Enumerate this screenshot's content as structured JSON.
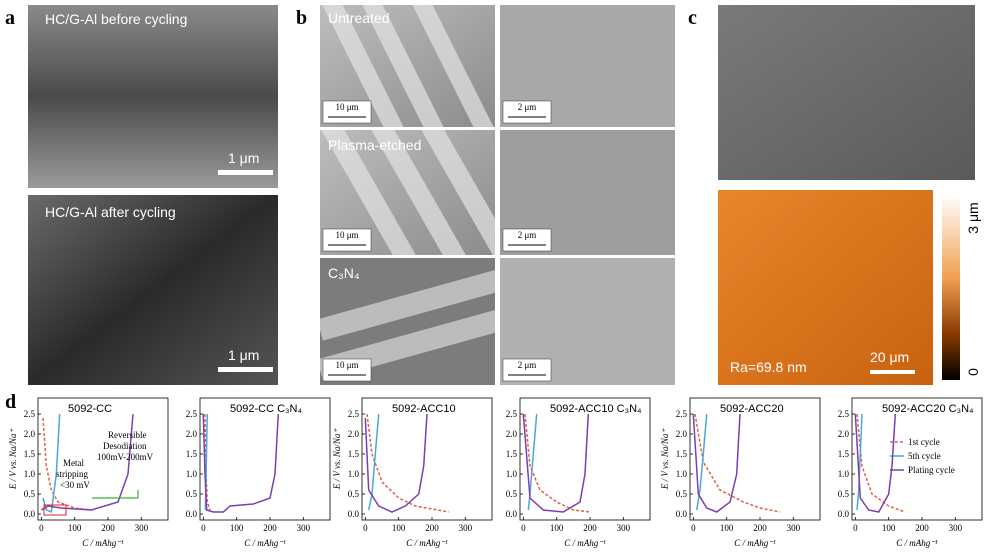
{
  "panels": {
    "a": {
      "label": "a",
      "images": [
        {
          "caption": "HC/G-Al before cycling",
          "scale": "1 μm"
        },
        {
          "caption": "HC/G-Al after cycling",
          "scale": "1 μm"
        }
      ]
    },
    "b": {
      "label": "b",
      "rows": [
        {
          "caption": "Untreated",
          "scales": [
            "10 μm",
            "2 μm"
          ]
        },
        {
          "caption": "Plasma-etched",
          "scales": [
            "10 μm",
            "2 μm"
          ]
        },
        {
          "caption": "C₃N₄",
          "scales": [
            "10 μm",
            "2 μm"
          ]
        }
      ]
    },
    "c": {
      "label": "c",
      "colorbar_max": "3 μm",
      "colorbar_min": "0",
      "roughness": "Ra=69.8 nm",
      "scale": "20 μm"
    },
    "d": {
      "label": "d"
    }
  },
  "chart_data": [
    {
      "type": "line",
      "title": "5092-CC",
      "ylabel": "E / V vs. Na/Na⁺",
      "xlabel": "C / mAhg⁻¹",
      "xlim": [
        -10,
        380
      ],
      "xticks": [
        0,
        100,
        200,
        300
      ],
      "ylim": [
        -0.15,
        2.9
      ],
      "yticks": [
        {
          "value": 0,
          "label": "0.0"
        },
        0.5,
        {
          "value": 1,
          "label": "1.0"
        },
        1.5,
        {
          "value": 2,
          "label": "2.0"
        },
        2.5
      ],
      "annotations": [
        "Metal",
        "stripping",
        "<30 mV",
        "Reversible",
        "Desodiation",
        "100mV-200mV"
      ],
      "series": [
        {
          "color": "#e0604a",
          "dashed": true,
          "x": [
            5,
            15,
            30,
            50,
            100,
            150
          ],
          "values": [
            2.4,
            1.2,
            0.6,
            0.3,
            0.15,
            0.1
          ]
        },
        {
          "color": "#4aa8d8",
          "x": [
            5,
            15,
            30,
            45,
            55
          ],
          "values": [
            0.4,
            0.1,
            0.05,
            1.0,
            2.5
          ]
        },
        {
          "color": "#7a3fb0",
          "x": [
            0,
            20,
            60,
            150,
            230,
            260,
            275
          ],
          "values": [
            0.1,
            0.2,
            0.15,
            0.1,
            0.3,
            1.0,
            2.5
          ]
        }
      ]
    },
    {
      "type": "line",
      "title": "5092-CC C₃N₄",
      "xlabel": "C / mAhg⁻¹",
      "xlim": [
        -10,
        380
      ],
      "xticks": [
        0,
        100,
        200,
        300
      ],
      "ylim": [
        -0.15,
        2.9
      ],
      "yticks": [
        {
          "value": 0,
          "label": "0.0"
        },
        0.5,
        {
          "value": 1,
          "label": "1.0"
        },
        1.5,
        {
          "value": 2,
          "label": "2.0"
        },
        2.5
      ],
      "series": [
        {
          "color": "#e0604a",
          "dashed": true,
          "x": [
            5,
            8,
            12,
            20
          ],
          "values": [
            2.5,
            1.0,
            0.3,
            0.1
          ]
        },
        {
          "color": "#4aa8d8",
          "x": [
            6,
            8,
            10,
            12
          ],
          "values": [
            0.1,
            0.8,
            1.8,
            2.5
          ]
        },
        {
          "color": "#7a3fb0",
          "x": [
            0,
            5,
            10,
            30,
            60,
            80,
            150,
            200,
            215,
            225
          ],
          "values": [
            2.5,
            1.0,
            0.1,
            0.05,
            0.05,
            0.2,
            0.25,
            0.4,
            1.0,
            2.5
          ]
        }
      ]
    },
    {
      "type": "line",
      "title": "5092-ACC10",
      "ylabel": "E / V vs. Na/Na⁺",
      "xlabel": "C / mAhg⁻¹",
      "xlim": [
        -10,
        380
      ],
      "xticks": [
        0,
        100,
        200,
        300
      ],
      "ylim": [
        -0.15,
        2.9
      ],
      "yticks": [
        {
          "value": 0,
          "label": "0.0"
        },
        0.5,
        {
          "value": 1,
          "label": "1.0"
        },
        1.5,
        {
          "value": 2,
          "label": "2.0"
        },
        2.5
      ],
      "series": [
        {
          "color": "#e0604a",
          "dashed": true,
          "x": [
            5,
            20,
            50,
            100,
            150,
            250
          ],
          "values": [
            2.5,
            1.5,
            0.8,
            0.4,
            0.2,
            0.05
          ]
        },
        {
          "color": "#4aa8d8",
          "x": [
            10,
            20,
            30,
            40
          ],
          "values": [
            0.1,
            0.5,
            1.5,
            2.5
          ]
        },
        {
          "color": "#7a3fb0",
          "x": [
            0,
            10,
            40,
            80,
            120,
            160,
            175,
            185
          ],
          "values": [
            2.4,
            0.6,
            0.2,
            0.05,
            0.2,
            0.5,
            1.2,
            2.5
          ]
        }
      ]
    },
    {
      "type": "line",
      "title": "5092-ACC10 C₃N₄",
      "xlabel": "C / mAhg⁻¹",
      "xlim": [
        -10,
        380
      ],
      "xticks": [
        0,
        100,
        200,
        300
      ],
      "ylim": [
        -0.15,
        2.9
      ],
      "yticks": [
        {
          "value": 0,
          "label": "0.0"
        },
        0.5,
        {
          "value": 1,
          "label": "1.0"
        },
        1.5,
        {
          "value": 2,
          "label": "2.0"
        },
        2.5
      ],
      "series": [
        {
          "color": "#e0604a",
          "dashed": true,
          "x": [
            5,
            20,
            50,
            100,
            150,
            200
          ],
          "values": [
            2.5,
            1.2,
            0.6,
            0.3,
            0.1,
            0.05
          ]
        },
        {
          "color": "#4aa8d8",
          "x": [
            15,
            20,
            30,
            40
          ],
          "values": [
            0.1,
            0.5,
            1.5,
            2.5
          ]
        },
        {
          "color": "#7a3fb0",
          "x": [
            0,
            20,
            60,
            120,
            170,
            185,
            195
          ],
          "values": [
            2.5,
            0.4,
            0.1,
            0.05,
            0.3,
            1.0,
            2.5
          ]
        }
      ]
    },
    {
      "type": "line",
      "title": "5092-ACC20",
      "ylabel": "E / V vs. Na/Na⁺",
      "xlabel": "C / mAhg⁻¹",
      "xlim": [
        -10,
        380
      ],
      "xticks": [
        0,
        100,
        200,
        300
      ],
      "ylim": [
        -0.15,
        2.9
      ],
      "yticks": [
        {
          "value": 0,
          "label": "0.0"
        },
        0.5,
        {
          "value": 1,
          "label": "1.0"
        },
        1.5,
        {
          "value": 2,
          "label": "2.0"
        },
        2.5
      ],
      "series": [
        {
          "color": "#e0604a",
          "dashed": true,
          "x": [
            5,
            30,
            80,
            150,
            200,
            260
          ],
          "values": [
            2.5,
            1.3,
            0.6,
            0.3,
            0.15,
            0.05
          ]
        },
        {
          "color": "#4aa8d8",
          "x": [
            10,
            20,
            30,
            40
          ],
          "values": [
            0.1,
            0.6,
            1.5,
            2.5
          ]
        },
        {
          "color": "#7a3fb0",
          "x": [
            0,
            15,
            40,
            70,
            110,
            130,
            140
          ],
          "values": [
            2.5,
            0.5,
            0.15,
            0.05,
            0.3,
            1.0,
            2.5
          ]
        }
      ]
    },
    {
      "type": "line",
      "title": "5092-ACC20 C₃N₄",
      "xlabel": "C / mAhg⁻¹",
      "xlim": [
        -10,
        380
      ],
      "xticks": [
        0,
        100,
        200,
        300
      ],
      "ylim": [
        -0.15,
        2.9
      ],
      "yticks": [
        {
          "value": 0,
          "label": "0.0"
        },
        0.5,
        {
          "value": 1,
          "label": "1.0"
        },
        1.5,
        {
          "value": 2,
          "label": "2.0"
        },
        2.5
      ],
      "series": [
        {
          "name": "1st cycle",
          "color": "#e0604a",
          "dashed": true,
          "x": [
            5,
            20,
            50,
            100,
            150
          ],
          "values": [
            2.5,
            1.2,
            0.5,
            0.2,
            0.05
          ]
        },
        {
          "name": "5th cycle",
          "color": "#4aa8d8",
          "x": [
            5,
            10,
            15,
            20
          ],
          "values": [
            0.1,
            0.6,
            1.5,
            2.5
          ]
        },
        {
          "name": "Plating cycle",
          "color": "#7a3fb0",
          "x": [
            0,
            15,
            40,
            70,
            100,
            110,
            120
          ],
          "values": [
            2.5,
            0.4,
            0.1,
            0.05,
            0.5,
            1.2,
            2.5
          ]
        }
      ]
    }
  ]
}
